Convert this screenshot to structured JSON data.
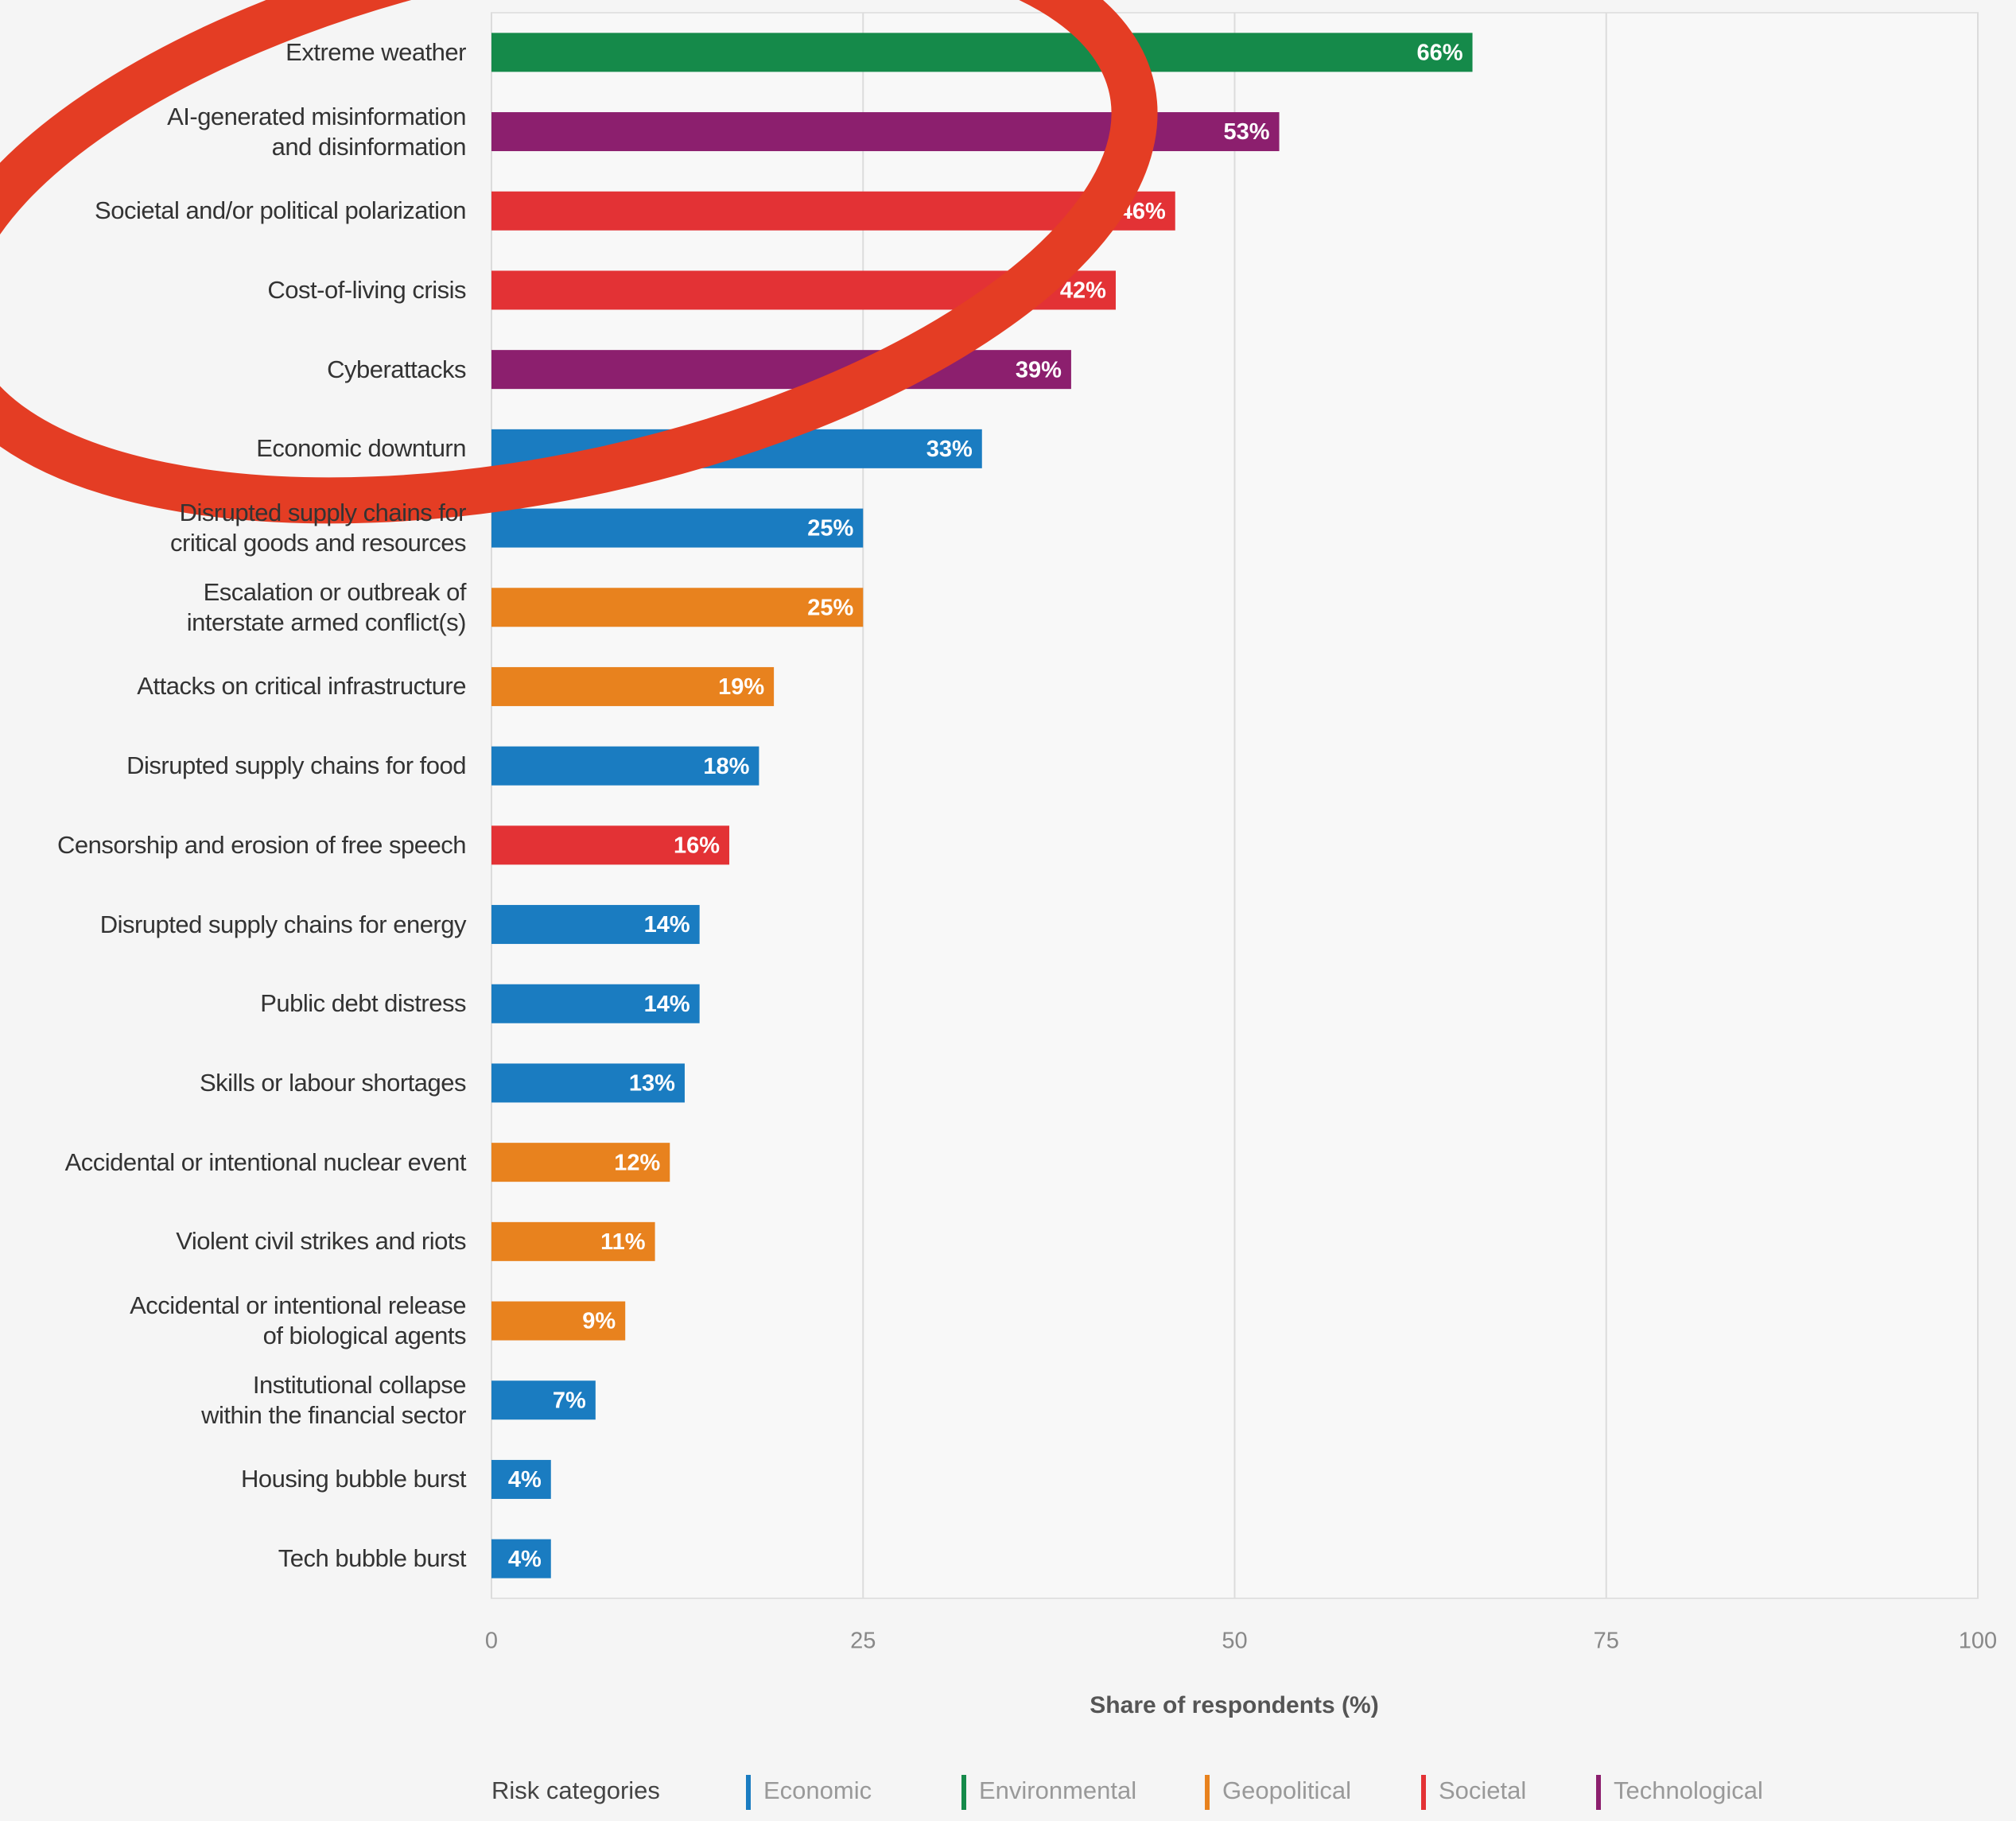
{
  "chart_data": {
    "type": "bar",
    "orientation": "horizontal",
    "categories": [
      "Extreme weather",
      "AI-generated misinformation\nand disinformation",
      "Societal and/or political polarization",
      "Cost-of-living crisis",
      "Cyberattacks",
      "Economic downturn",
      "Disrupted supply chains for\ncritical goods and resources",
      "Escalation or outbreak of\ninterstate armed conflict(s)",
      "Attacks on critical infrastructure",
      "Disrupted supply chains for food",
      "Censorship and erosion of free speech",
      "Disrupted supply chains for energy",
      "Public debt distress",
      "Skills or labour shortages",
      "Accidental or intentional nuclear event",
      "Violent civil strikes and riots",
      "Accidental or intentional release\nof biological agents",
      "Institutional collapse\nwithin the financial sector",
      "Housing bubble burst",
      "Tech bubble burst"
    ],
    "series": [
      {
        "name": "Economic",
        "color": "#1a7cc1",
        "values": [
          null,
          null,
          null,
          null,
          null,
          33,
          25,
          null,
          null,
          18,
          null,
          14,
          14,
          13,
          null,
          null,
          null,
          7,
          4,
          4
        ],
        "value_labels": [
          null,
          null,
          null,
          null,
          null,
          "33%",
          "25%",
          null,
          null,
          "18%",
          null,
          "14%",
          "14%",
          "13%",
          null,
          null,
          null,
          "7%",
          "4%",
          "4%"
        ]
      },
      {
        "name": "Environmental",
        "color": "#158a4a",
        "values": [
          66,
          null,
          null,
          null,
          null,
          null,
          null,
          null,
          null,
          null,
          null,
          null,
          null,
          null,
          null,
          null,
          null,
          null,
          null,
          null
        ],
        "value_labels": [
          "66%",
          null,
          null,
          null,
          null,
          null,
          null,
          null,
          null,
          null,
          null,
          null,
          null,
          null,
          null,
          null,
          null,
          null,
          null,
          null
        ]
      },
      {
        "name": "Geopolitical",
        "color": "#e8821e",
        "values": [
          null,
          null,
          null,
          null,
          null,
          null,
          null,
          25,
          19,
          null,
          null,
          null,
          null,
          null,
          12,
          11,
          9,
          null,
          null,
          null
        ],
        "value_labels": [
          null,
          null,
          null,
          null,
          null,
          null,
          null,
          "25%",
          "19%",
          null,
          null,
          null,
          null,
          null,
          "12%",
          "11%",
          "9%",
          null,
          null,
          null
        ]
      },
      {
        "name": "Societal",
        "color": "#e33235",
        "values": [
          null,
          null,
          46,
          42,
          null,
          null,
          null,
          null,
          null,
          null,
          16,
          null,
          null,
          null,
          null,
          null,
          null,
          null,
          null,
          null
        ],
        "value_labels": [
          null,
          null,
          "46%",
          "42%",
          null,
          null,
          null,
          null,
          null,
          null,
          "16%",
          null,
          null,
          null,
          null,
          null,
          null,
          null,
          null,
          null
        ]
      },
      {
        "name": "Technological",
        "color": "#8c1f6e",
        "values": [
          null,
          53,
          null,
          null,
          39,
          null,
          null,
          null,
          null,
          null,
          null,
          null,
          null,
          null,
          null,
          null,
          null,
          null,
          null,
          null
        ],
        "value_labels": [
          null,
          "53%",
          null,
          null,
          "39%",
          null,
          null,
          null,
          null,
          null,
          null,
          null,
          null,
          null,
          null,
          null,
          null,
          null,
          null,
          null
        ]
      }
    ],
    "xlim": [
      0,
      100
    ],
    "xticks": [
      0,
      25,
      50,
      75,
      100
    ],
    "grid": true,
    "x_label": "Share of respondents (%)",
    "legend_title": "Risk categories",
    "legend_position": "bottom"
  }
}
